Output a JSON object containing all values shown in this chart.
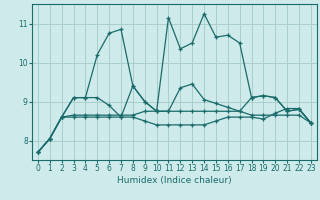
{
  "xlabel": "Humidex (Indice chaleur)",
  "xlim": [
    -0.5,
    23.5
  ],
  "ylim": [
    7.5,
    11.5
  ],
  "yticks": [
    8,
    9,
    10,
    11
  ],
  "xticks": [
    0,
    1,
    2,
    3,
    4,
    5,
    6,
    7,
    8,
    9,
    10,
    11,
    12,
    13,
    14,
    15,
    16,
    17,
    18,
    19,
    20,
    21,
    22,
    23
  ],
  "bg_color": "#ceeaea",
  "line_color": "#1a6b6b",
  "grid_color": "#a8cecc",
  "lines": [
    [
      7.7,
      8.05,
      8.6,
      9.1,
      9.1,
      10.2,
      10.75,
      10.85,
      9.4,
      9.0,
      8.75,
      11.15,
      10.35,
      10.5,
      11.25,
      10.65,
      10.7,
      10.5,
      9.1,
      9.15,
      9.1,
      8.75,
      8.8,
      8.45
    ],
    [
      7.7,
      8.05,
      8.6,
      9.1,
      9.1,
      9.1,
      8.9,
      8.6,
      9.4,
      9.0,
      8.75,
      8.75,
      9.35,
      9.45,
      9.05,
      8.95,
      8.85,
      8.75,
      9.1,
      9.15,
      9.1,
      8.75,
      8.8,
      8.45
    ],
    [
      7.7,
      8.05,
      8.6,
      8.65,
      8.65,
      8.65,
      8.65,
      8.65,
      8.65,
      8.75,
      8.75,
      8.75,
      8.75,
      8.75,
      8.75,
      8.75,
      8.75,
      8.75,
      8.65,
      8.65,
      8.65,
      8.65,
      8.65,
      8.45
    ],
    [
      7.7,
      8.05,
      8.6,
      8.6,
      8.6,
      8.6,
      8.6,
      8.6,
      8.6,
      8.5,
      8.4,
      8.4,
      8.4,
      8.4,
      8.4,
      8.5,
      8.6,
      8.6,
      8.6,
      8.55,
      8.7,
      8.82,
      8.82,
      8.45
    ]
  ]
}
